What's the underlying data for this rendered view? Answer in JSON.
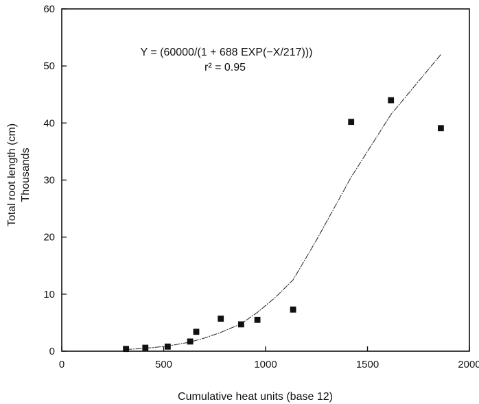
{
  "chart_data": {
    "type": "scatter",
    "title": "",
    "xlabel": "Cumulative heat units (base 12)",
    "ylabel_line1": "Total root length (cm)",
    "ylabel_line2": "Thousands",
    "xlim": [
      0,
      2000
    ],
    "ylim": [
      0,
      60
    ],
    "xticks": [
      0,
      500,
      1000,
      1500,
      2000
    ],
    "yticks": [
      0,
      10,
      20,
      30,
      40,
      50,
      60
    ],
    "grid": false,
    "annotation_equation": "Y = (60000/(1 + 688 EXP(−X/217)))",
    "annotation_r2": "r² = 0.95",
    "points": [
      {
        "x": 315,
        "y": 0.4
      },
      {
        "x": 410,
        "y": 0.6
      },
      {
        "x": 520,
        "y": 0.8
      },
      {
        "x": 630,
        "y": 1.7
      },
      {
        "x": 660,
        "y": 3.4
      },
      {
        "x": 780,
        "y": 5.7
      },
      {
        "x": 880,
        "y": 4.7
      },
      {
        "x": 960,
        "y": 5.5
      },
      {
        "x": 1135,
        "y": 7.3
      },
      {
        "x": 1420,
        "y": 40.2
      },
      {
        "x": 1615,
        "y": 44.0
      },
      {
        "x": 1860,
        "y": 39.1
      }
    ],
    "fit_line": [
      {
        "x": 315,
        "y": 0.3
      },
      {
        "x": 410,
        "y": 0.5
      },
      {
        "x": 520,
        "y": 0.9
      },
      {
        "x": 630,
        "y": 1.6
      },
      {
        "x": 700,
        "y": 2.3
      },
      {
        "x": 780,
        "y": 3.3
      },
      {
        "x": 880,
        "y": 4.8
      },
      {
        "x": 960,
        "y": 6.8
      },
      {
        "x": 1050,
        "y": 9.5
      },
      {
        "x": 1135,
        "y": 12.5
      },
      {
        "x": 1250,
        "y": 19.5
      },
      {
        "x": 1420,
        "y": 30.5
      },
      {
        "x": 1615,
        "y": 41.5
      },
      {
        "x": 1860,
        "y": 52.0
      }
    ],
    "colors": {
      "marks": "#111111",
      "fit_line": "#333333"
    }
  }
}
